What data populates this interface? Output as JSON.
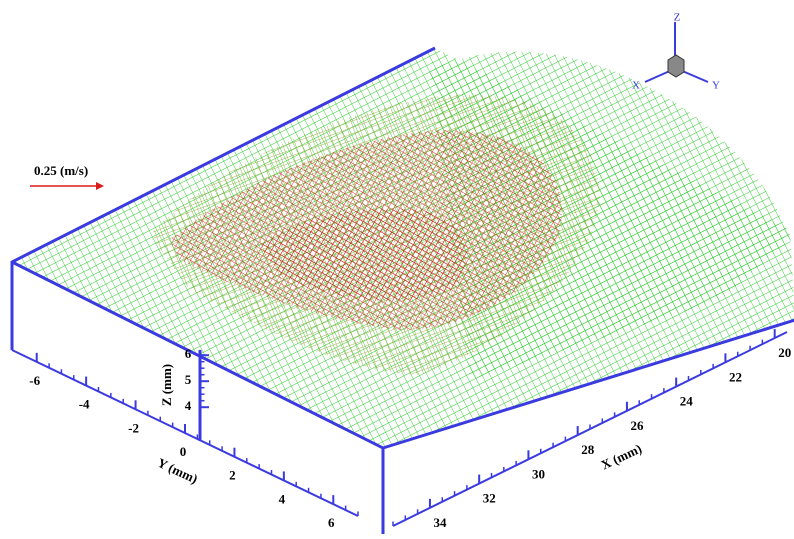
{
  "chart_data": {
    "type": "surface3d",
    "xlabel": "X (mm)",
    "ylabel": "Y (mm)",
    "zlabel": "Z (mm)",
    "xlim": [
      19.5,
      35.5
    ],
    "xticks": [
      20,
      22,
      24,
      26,
      28,
      30,
      32,
      34
    ],
    "ylim": [
      -7,
      7
    ],
    "yticks": [
      -6,
      -4,
      -2,
      0,
      2,
      4,
      6
    ],
    "zlim": [
      2.7,
      6.2
    ],
    "zticks": [
      4,
      5,
      6
    ],
    "reference_vector": "0.25 (m/s)",
    "triad": [
      "X",
      "Y",
      "Z"
    ],
    "mesh_color": "#2ecc2e",
    "vector_color": "#dd1a1a",
    "frame_color": "#3a3ae0"
  }
}
